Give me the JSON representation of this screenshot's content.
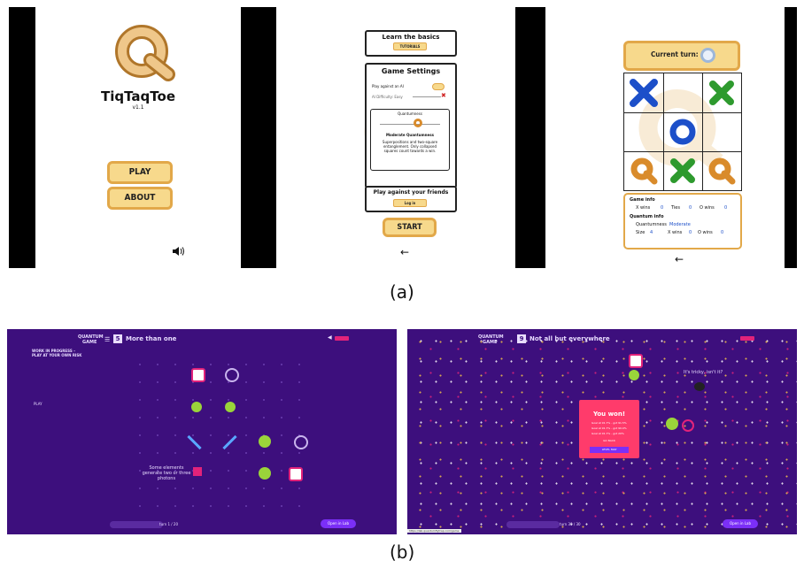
{
  "tiqtaqtoe": {
    "home": {
      "title": "TiqTaqToe",
      "version": "v1.1",
      "play_label": "PLAY",
      "about_label": "ABOUT",
      "sound_icon": "speaker-icon"
    },
    "settings": {
      "learn_title": "Learn the basics",
      "tutorials_label": "TUTORIALS",
      "game_settings_title": "Game Settings",
      "play_against_ai_label": "Play against an AI",
      "ai_difficulty_label": "AI Difficulty: Easy",
      "quantumness_label": "Quantumness",
      "quantumness_level": "Moderate Quantumness",
      "quantumness_desc": "Superpositions and two-square entanglement. Only collapsed squares count towards a win.",
      "friends_title": "Play against your friends",
      "login_label": "Log in",
      "start_label": "START",
      "back_arrow": "←"
    },
    "game": {
      "current_turn_label": "Current turn:",
      "info_title": "Game info",
      "x_wins_label": "X wins",
      "x_wins_value": "0",
      "ties_label": "Ties",
      "ties_value": "0",
      "o_wins_label": "O wins",
      "o_wins_value": "0",
      "quantum_info_title": "Quantum info",
      "quantumness_label": "Quantumness",
      "quantumness_value": "Moderate",
      "size_label": "Size",
      "size_value": "4",
      "x_wins2_value": "0",
      "o_wins2_value": "0",
      "back_arrow": "←"
    }
  },
  "caption_a": "(a)",
  "caption_b": "(b)",
  "quantum_game": {
    "left": {
      "logo_line1": "QUANTUM",
      "logo_line2": "GAME",
      "level_number": "5",
      "level_title": "More than one",
      "wip_title": "WORK IN PROGRESS – PLAY AT YOUR OWN RISK",
      "play_label": "PLAY",
      "hint_text": "Some elements generate two or three photons",
      "turn_text": "turn 1 / 20",
      "open_lab_label": "Open in Lab"
    },
    "right": {
      "logo_line1": "QUANTUM",
      "logo_line2": "GAME",
      "level_number": "9",
      "level_title": "Not all but everywhere",
      "tricky_text": "It's tricky, isn't it?",
      "you_won": "You won!",
      "goal_lines": [
        "Goal at 91.7% - got 91.5%",
        "Goal at 91.7% - got 90.0%",
        "Goal at 91.7% - got 20%"
      ],
      "go_back_label": "GO BACK",
      "level_map_label": "LEVEL MAP",
      "turn_text": "turn 30 / 30",
      "open_lab_label": "Open in Lab",
      "status_url": "https://lab.quantumflytrap.com/game"
    }
  },
  "colors": {
    "qg_bg": "#3d0f7d",
    "qg_accent": "#e2237a",
    "tile_yellow": "#f7d98c",
    "tile_border": "#e2a849",
    "x_blue": "#1c4fc9",
    "x_green": "#2e9a2e",
    "q_orange": "#d98b2b"
  }
}
